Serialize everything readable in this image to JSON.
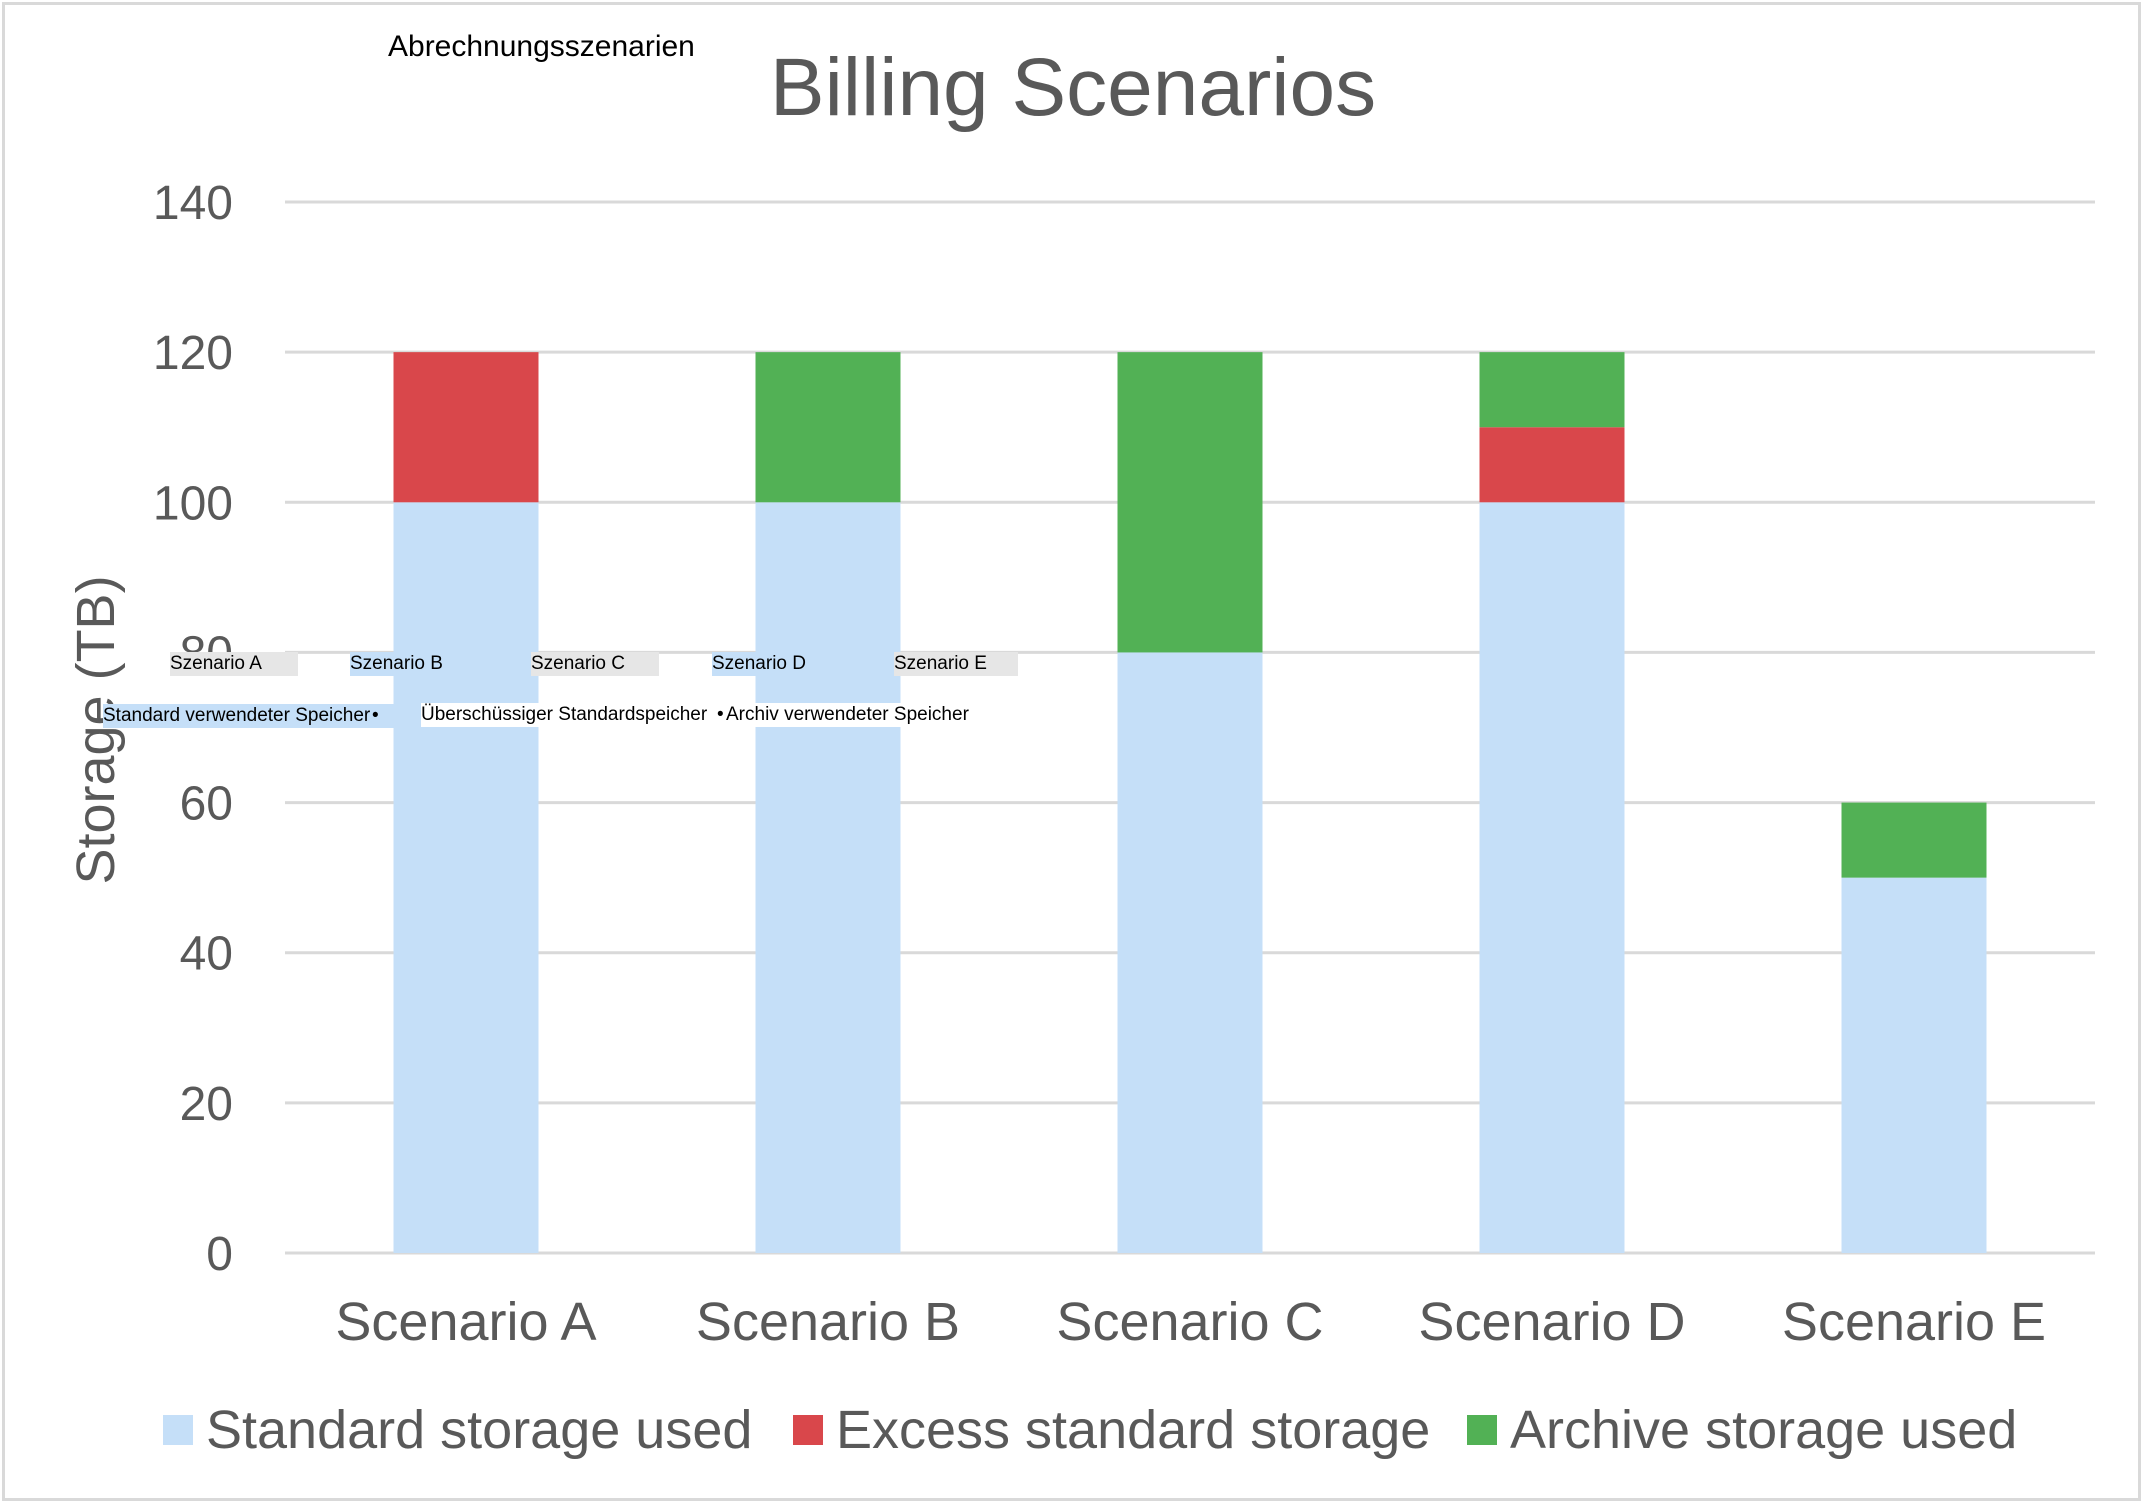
{
  "overlay": {
    "title": "Abrechnungsszenarien",
    "categories": [
      "Szenario A",
      "Szenario B",
      "Szenario C",
      "Szenario D",
      "Szenario E"
    ],
    "legend": [
      "Standard verwendeter Speicher",
      "•",
      "Überschüssiger Standardspeicher",
      "•",
      "Archiv verwendeter Speicher"
    ]
  },
  "chart_data": {
    "type": "bar",
    "stacked": true,
    "title": "Billing Scenarios",
    "xlabel": "",
    "ylabel": "Storage (TB)",
    "ylim": [
      0,
      140
    ],
    "yticks": [
      0,
      20,
      40,
      60,
      80,
      100,
      120,
      140
    ],
    "grid": true,
    "legend_position": "bottom",
    "categories": [
      "Scenario A",
      "Scenario B",
      "Scenario C",
      "Scenario D",
      "Scenario E"
    ],
    "series": [
      {
        "name": "Standard storage used",
        "color": "#c5dff8",
        "values": [
          100,
          100,
          80,
          100,
          50
        ]
      },
      {
        "name": "Excess standard storage",
        "color": "#d9474b",
        "values": [
          20,
          0,
          0,
          10,
          0
        ]
      },
      {
        "name": "Archive storage used",
        "color": "#52b155",
        "values": [
          0,
          20,
          40,
          10,
          10
        ]
      }
    ]
  }
}
